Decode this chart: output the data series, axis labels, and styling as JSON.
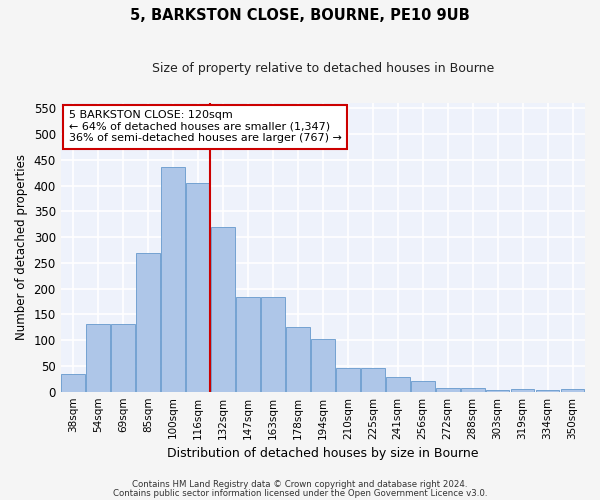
{
  "title": "5, BARKSTON CLOSE, BOURNE, PE10 9UB",
  "subtitle": "Size of property relative to detached houses in Bourne",
  "xlabel": "Distribution of detached houses by size in Bourne",
  "ylabel": "Number of detached properties",
  "categories": [
    "38sqm",
    "54sqm",
    "69sqm",
    "85sqm",
    "100sqm",
    "116sqm",
    "132sqm",
    "147sqm",
    "163sqm",
    "178sqm",
    "194sqm",
    "210sqm",
    "225sqm",
    "241sqm",
    "256sqm",
    "272sqm",
    "288sqm",
    "303sqm",
    "319sqm",
    "334sqm",
    "350sqm"
  ],
  "values": [
    35,
    132,
    132,
    270,
    435,
    405,
    320,
    183,
    183,
    125,
    103,
    45,
    45,
    29,
    20,
    8,
    8,
    4,
    5,
    4,
    5
  ],
  "bar_color": "#aec6e8",
  "bar_edge_color": "#6699cc",
  "vline_x": 5.5,
  "vline_color": "#cc0000",
  "annotation_line1": "5 BARKSTON CLOSE: 120sqm",
  "annotation_line2": "← 64% of detached houses are smaller (1,347)",
  "annotation_line3": "36% of semi-detached houses are larger (767) →",
  "annotation_box_color": "#cc0000",
  "ylim": [
    0,
    560
  ],
  "yticks": [
    0,
    50,
    100,
    150,
    200,
    250,
    300,
    350,
    400,
    450,
    500,
    550
  ],
  "background_color": "#eef2fb",
  "grid_color": "#ffffff",
  "fig_bg_color": "#f5f5f5",
  "footer_line1": "Contains HM Land Registry data © Crown copyright and database right 2024.",
  "footer_line2": "Contains public sector information licensed under the Open Government Licence v3.0."
}
